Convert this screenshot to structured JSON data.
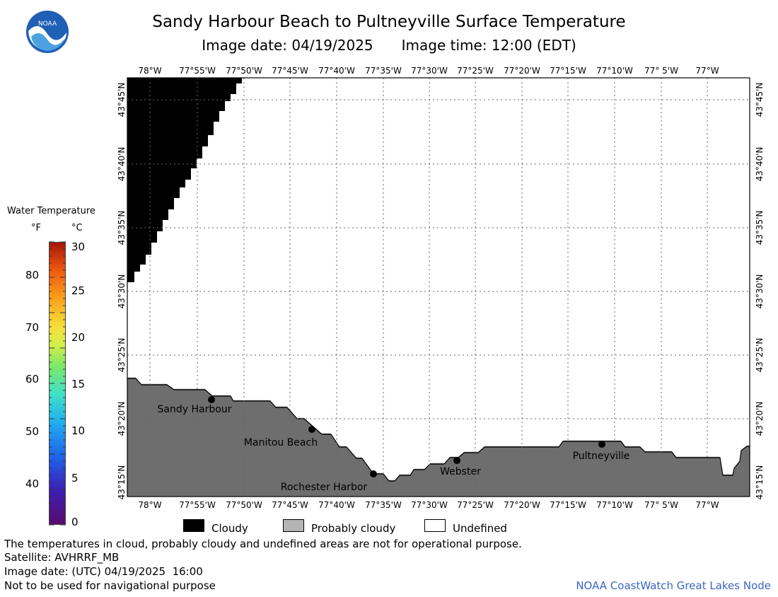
{
  "header": {
    "title": "Sandy Harbour Beach to Pultneyville Surface Temperature",
    "image_date": "Image date: 04/19/2025",
    "image_time": "Image time: 12:00 (EDT)",
    "logo_text": "NOAA"
  },
  "map": {
    "top_lon_labels": [
      "78°W",
      "77°55'W",
      "77°50'W",
      "77°45'W",
      "77°40'W",
      "77°35'W",
      "77°30'W",
      "77°25'W",
      "77°20'W",
      "77°15'W",
      "77°10'W",
      "77° 5'W",
      "77°W"
    ],
    "bottom_lon_labels": [
      "78°W",
      "77°55'W",
      "77°50'W",
      "77°45'W",
      "77°40'W",
      "77°35'W",
      "77°30'W",
      "77°25'W",
      "77°20'W",
      "77°15'W",
      "77°10'W",
      "77° 5'W",
      "77°W"
    ],
    "lat_labels": [
      "43°45'N",
      "43°40'N",
      "43°35'N",
      "43°30'N",
      "43°25'N",
      "43°20'N",
      "43°15'N"
    ],
    "places": [
      {
        "name": "Sandy Harbour"
      },
      {
        "name": "Manitou Beach"
      },
      {
        "name": "Rochester Harbor"
      },
      {
        "name": "Webster"
      },
      {
        "name": "Pultneyville"
      }
    ],
    "colors": {
      "cloudy": "#000000",
      "land": "#6e6e6e",
      "probably_cloudy": "#b4b4b4",
      "undefined": "#ffffff"
    }
  },
  "legend": {
    "title": "Water Temperature",
    "unit_f": "°F",
    "unit_c": "°C",
    "f_ticks": [
      "80",
      "70",
      "60",
      "50",
      "40"
    ],
    "c_ticks": [
      "30",
      "25",
      "20",
      "15",
      "10",
      "5",
      "0"
    ]
  },
  "key": {
    "cloudy": "Cloudy",
    "probably_cloudy": "Probably cloudy",
    "undefined": "Undefined"
  },
  "footer": {
    "note": "The temperatures in cloud, probably cloudy and undefined areas are not for operational purpose.",
    "satellite": "Satellite: AVHRRF_MB",
    "utc_date": "Image date: (UTC) 04/19/2025  16:00",
    "nav_warning": "Not to be used for navigational purpose",
    "credit": "NOAA CoastWatch Great Lakes Node"
  }
}
